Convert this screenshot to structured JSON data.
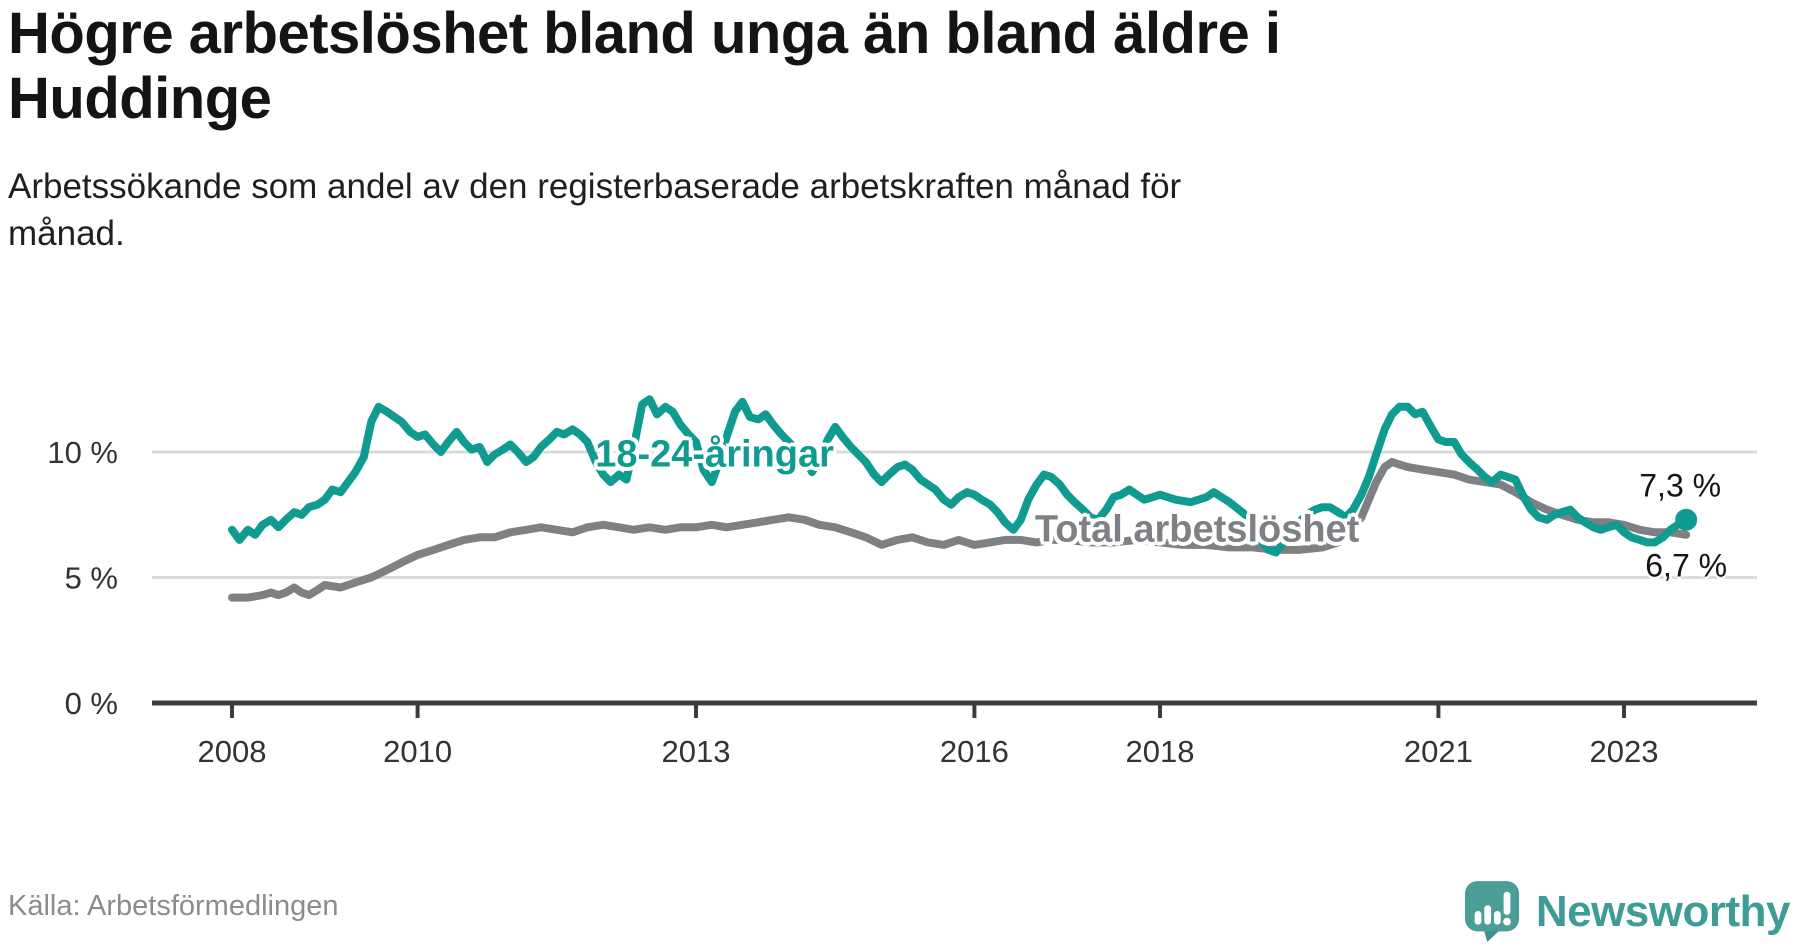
{
  "title": "Högre arbetslöshet bland unga än bland äldre i\nHuddinge",
  "subtitle": "Arbetssökande som andel av den registerbaserade arbetskraften månad för\nmånad.",
  "source": "Källa: Arbetsförmedlingen",
  "brand": {
    "name": "Newsworthy",
    "bubble_color": "#4a9e97",
    "tail_color": "#3f928b",
    "text_color": "#3e9c95"
  },
  "colors": {
    "background": "#ffffff",
    "axis": "#3c3c3c",
    "gridline": "#dbdbdb",
    "tick_label": "#333333",
    "young_series": "#0f9b90",
    "total_series": "#7f8084"
  },
  "chart_data": {
    "type": "line",
    "title": "Högre arbetslöshet bland unga än bland äldre i Huddinge",
    "xlabel": "",
    "ylabel": "Arbetssökande som andel av den registerbaserade arbetskraften (%)",
    "x_axis": {
      "ticks": [
        2008,
        2010,
        2013,
        2016,
        2018,
        2021,
        2023
      ],
      "range": [
        2007.1,
        2024.4
      ]
    },
    "y_axis": {
      "ticks": [
        0,
        5,
        10
      ],
      "tick_suffix": " %",
      "range": [
        0,
        13.2
      ],
      "grid": true
    },
    "legend_position": "inline-labels",
    "series": [
      {
        "name": "18-24-åringar",
        "color": "#0f9b90",
        "end_label": "7,3 %",
        "end_value": 7.3,
        "end_dot": true,
        "label_pos": {
          "x": 2013.2,
          "y": 9.9
        },
        "points": [
          [
            2008.0,
            6.9
          ],
          [
            2008.08,
            6.5
          ],
          [
            2008.17,
            6.9
          ],
          [
            2008.25,
            6.7
          ],
          [
            2008.33,
            7.1
          ],
          [
            2008.42,
            7.3
          ],
          [
            2008.5,
            7.0
          ],
          [
            2008.58,
            7.3
          ],
          [
            2008.67,
            7.6
          ],
          [
            2008.75,
            7.5
          ],
          [
            2008.83,
            7.8
          ],
          [
            2008.92,
            7.9
          ],
          [
            2009.0,
            8.1
          ],
          [
            2009.08,
            8.5
          ],
          [
            2009.17,
            8.4
          ],
          [
            2009.25,
            8.8
          ],
          [
            2009.33,
            9.2
          ],
          [
            2009.42,
            9.8
          ],
          [
            2009.5,
            11.2
          ],
          [
            2009.58,
            11.8
          ],
          [
            2009.67,
            11.6
          ],
          [
            2009.75,
            11.4
          ],
          [
            2009.83,
            11.2
          ],
          [
            2009.92,
            10.8
          ],
          [
            2010.0,
            10.6
          ],
          [
            2010.08,
            10.7
          ],
          [
            2010.17,
            10.3
          ],
          [
            2010.25,
            10.0
          ],
          [
            2010.33,
            10.4
          ],
          [
            2010.42,
            10.8
          ],
          [
            2010.5,
            10.4
          ],
          [
            2010.58,
            10.1
          ],
          [
            2010.67,
            10.2
          ],
          [
            2010.75,
            9.6
          ],
          [
            2010.83,
            9.9
          ],
          [
            2010.92,
            10.1
          ],
          [
            2011.0,
            10.3
          ],
          [
            2011.08,
            10.0
          ],
          [
            2011.17,
            9.6
          ],
          [
            2011.25,
            9.8
          ],
          [
            2011.33,
            10.2
          ],
          [
            2011.42,
            10.5
          ],
          [
            2011.5,
            10.8
          ],
          [
            2011.58,
            10.7
          ],
          [
            2011.67,
            10.9
          ],
          [
            2011.75,
            10.7
          ],
          [
            2011.83,
            10.4
          ],
          [
            2011.92,
            9.6
          ],
          [
            2012.0,
            9.1
          ],
          [
            2012.08,
            8.8
          ],
          [
            2012.17,
            9.1
          ],
          [
            2012.25,
            8.9
          ],
          [
            2012.33,
            10.2
          ],
          [
            2012.42,
            11.9
          ],
          [
            2012.5,
            12.1
          ],
          [
            2012.58,
            11.5
          ],
          [
            2012.67,
            11.8
          ],
          [
            2012.75,
            11.6
          ],
          [
            2012.83,
            11.1
          ],
          [
            2012.92,
            10.7
          ],
          [
            2013.0,
            10.4
          ],
          [
            2013.08,
            9.3
          ],
          [
            2013.17,
            8.8
          ],
          [
            2013.25,
            9.6
          ],
          [
            2013.33,
            10.6
          ],
          [
            2013.42,
            11.6
          ],
          [
            2013.5,
            12.0
          ],
          [
            2013.58,
            11.4
          ],
          [
            2013.67,
            11.3
          ],
          [
            2013.75,
            11.5
          ],
          [
            2013.83,
            11.1
          ],
          [
            2013.92,
            10.7
          ],
          [
            2014.0,
            10.4
          ],
          [
            2014.08,
            10.1
          ],
          [
            2014.17,
            9.8
          ],
          [
            2014.25,
            9.2
          ],
          [
            2014.33,
            9.7
          ],
          [
            2014.42,
            10.5
          ],
          [
            2014.5,
            11.0
          ],
          [
            2014.58,
            10.6
          ],
          [
            2014.67,
            10.2
          ],
          [
            2014.75,
            9.9
          ],
          [
            2014.83,
            9.6
          ],
          [
            2014.92,
            9.1
          ],
          [
            2015.0,
            8.8
          ],
          [
            2015.08,
            9.1
          ],
          [
            2015.17,
            9.4
          ],
          [
            2015.25,
            9.5
          ],
          [
            2015.33,
            9.3
          ],
          [
            2015.42,
            8.9
          ],
          [
            2015.5,
            8.7
          ],
          [
            2015.58,
            8.5
          ],
          [
            2015.67,
            8.1
          ],
          [
            2015.75,
            7.9
          ],
          [
            2015.83,
            8.2
          ],
          [
            2015.92,
            8.4
          ],
          [
            2016.0,
            8.3
          ],
          [
            2016.08,
            8.1
          ],
          [
            2016.17,
            7.9
          ],
          [
            2016.25,
            7.6
          ],
          [
            2016.33,
            7.2
          ],
          [
            2016.42,
            6.9
          ],
          [
            2016.5,
            7.3
          ],
          [
            2016.58,
            8.1
          ],
          [
            2016.67,
            8.7
          ],
          [
            2016.75,
            9.1
          ],
          [
            2016.83,
            9.0
          ],
          [
            2016.92,
            8.7
          ],
          [
            2017.0,
            8.3
          ],
          [
            2017.08,
            8.0
          ],
          [
            2017.17,
            7.7
          ],
          [
            2017.25,
            7.4
          ],
          [
            2017.33,
            7.3
          ],
          [
            2017.42,
            7.7
          ],
          [
            2017.5,
            8.2
          ],
          [
            2017.58,
            8.3
          ],
          [
            2017.67,
            8.5
          ],
          [
            2017.75,
            8.3
          ],
          [
            2017.83,
            8.1
          ],
          [
            2017.92,
            8.2
          ],
          [
            2018.0,
            8.3
          ],
          [
            2018.17,
            8.1
          ],
          [
            2018.33,
            8.0
          ],
          [
            2018.5,
            8.2
          ],
          [
            2018.58,
            8.4
          ],
          [
            2018.75,
            8.0
          ],
          [
            2018.92,
            7.5
          ],
          [
            2019.0,
            7.0
          ],
          [
            2019.08,
            6.5
          ],
          [
            2019.17,
            6.1
          ],
          [
            2019.25,
            6.0
          ],
          [
            2019.33,
            6.4
          ],
          [
            2019.42,
            6.9
          ],
          [
            2019.5,
            7.2
          ],
          [
            2019.58,
            7.5
          ],
          [
            2019.67,
            7.7
          ],
          [
            2019.75,
            7.8
          ],
          [
            2019.83,
            7.8
          ],
          [
            2019.92,
            7.6
          ],
          [
            2020.0,
            7.4
          ],
          [
            2020.08,
            7.7
          ],
          [
            2020.17,
            8.3
          ],
          [
            2020.25,
            9.0
          ],
          [
            2020.33,
            9.9
          ],
          [
            2020.42,
            10.9
          ],
          [
            2020.5,
            11.5
          ],
          [
            2020.58,
            11.8
          ],
          [
            2020.67,
            11.8
          ],
          [
            2020.75,
            11.5
          ],
          [
            2020.83,
            11.6
          ],
          [
            2020.92,
            11.0
          ],
          [
            2021.0,
            10.5
          ],
          [
            2021.08,
            10.4
          ],
          [
            2021.17,
            10.4
          ],
          [
            2021.25,
            9.9
          ],
          [
            2021.33,
            9.6
          ],
          [
            2021.42,
            9.3
          ],
          [
            2021.5,
            9.0
          ],
          [
            2021.58,
            8.8
          ],
          [
            2021.67,
            9.1
          ],
          [
            2021.75,
            9.0
          ],
          [
            2021.83,
            8.9
          ],
          [
            2021.92,
            8.2
          ],
          [
            2022.0,
            7.7
          ],
          [
            2022.08,
            7.4
          ],
          [
            2022.17,
            7.3
          ],
          [
            2022.25,
            7.5
          ],
          [
            2022.33,
            7.6
          ],
          [
            2022.42,
            7.7
          ],
          [
            2022.5,
            7.4
          ],
          [
            2022.58,
            7.2
          ],
          [
            2022.67,
            7.0
          ],
          [
            2022.75,
            6.9
          ],
          [
            2022.83,
            7.0
          ],
          [
            2022.92,
            7.1
          ],
          [
            2023.0,
            6.8
          ],
          [
            2023.08,
            6.6
          ],
          [
            2023.17,
            6.5
          ],
          [
            2023.25,
            6.4
          ],
          [
            2023.33,
            6.4
          ],
          [
            2023.42,
            6.6
          ],
          [
            2023.5,
            6.9
          ],
          [
            2023.58,
            7.1
          ],
          [
            2023.67,
            7.3
          ]
        ]
      },
      {
        "name": "Total arbetslöshet",
        "color": "#7f8084",
        "end_label": "6,7 %",
        "end_value": 6.7,
        "end_dot": false,
        "label_pos": {
          "x": 2018.4,
          "y": 6.9
        },
        "points": [
          [
            2008.0,
            4.2
          ],
          [
            2008.17,
            4.2
          ],
          [
            2008.33,
            4.3
          ],
          [
            2008.42,
            4.4
          ],
          [
            2008.5,
            4.3
          ],
          [
            2008.58,
            4.4
          ],
          [
            2008.67,
            4.6
          ],
          [
            2008.75,
            4.4
          ],
          [
            2008.83,
            4.3
          ],
          [
            2008.92,
            4.5
          ],
          [
            2009.0,
            4.7
          ],
          [
            2009.17,
            4.6
          ],
          [
            2009.33,
            4.8
          ],
          [
            2009.5,
            5.0
          ],
          [
            2009.67,
            5.3
          ],
          [
            2009.83,
            5.6
          ],
          [
            2010.0,
            5.9
          ],
          [
            2010.17,
            6.1
          ],
          [
            2010.33,
            6.3
          ],
          [
            2010.5,
            6.5
          ],
          [
            2010.67,
            6.6
          ],
          [
            2010.83,
            6.6
          ],
          [
            2011.0,
            6.8
          ],
          [
            2011.17,
            6.9
          ],
          [
            2011.33,
            7.0
          ],
          [
            2011.5,
            6.9
          ],
          [
            2011.67,
            6.8
          ],
          [
            2011.83,
            7.0
          ],
          [
            2012.0,
            7.1
          ],
          [
            2012.17,
            7.0
          ],
          [
            2012.33,
            6.9
          ],
          [
            2012.5,
            7.0
          ],
          [
            2012.67,
            6.9
          ],
          [
            2012.83,
            7.0
          ],
          [
            2013.0,
            7.0
          ],
          [
            2013.17,
            7.1
          ],
          [
            2013.33,
            7.0
          ],
          [
            2013.5,
            7.1
          ],
          [
            2013.67,
            7.2
          ],
          [
            2013.83,
            7.3
          ],
          [
            2014.0,
            7.4
          ],
          [
            2014.17,
            7.3
          ],
          [
            2014.33,
            7.1
          ],
          [
            2014.5,
            7.0
          ],
          [
            2014.67,
            6.8
          ],
          [
            2014.83,
            6.6
          ],
          [
            2015.0,
            6.3
          ],
          [
            2015.17,
            6.5
          ],
          [
            2015.33,
            6.6
          ],
          [
            2015.5,
            6.4
          ],
          [
            2015.67,
            6.3
          ],
          [
            2015.83,
            6.5
          ],
          [
            2016.0,
            6.3
          ],
          [
            2016.17,
            6.4
          ],
          [
            2016.33,
            6.5
          ],
          [
            2016.5,
            6.5
          ],
          [
            2016.67,
            6.4
          ],
          [
            2016.83,
            6.5
          ],
          [
            2017.0,
            6.5
          ],
          [
            2017.25,
            6.4
          ],
          [
            2017.5,
            6.4
          ],
          [
            2017.75,
            6.5
          ],
          [
            2018.0,
            6.4
          ],
          [
            2018.25,
            6.3
          ],
          [
            2018.5,
            6.3
          ],
          [
            2018.75,
            6.2
          ],
          [
            2019.0,
            6.2
          ],
          [
            2019.25,
            6.1
          ],
          [
            2019.5,
            6.1
          ],
          [
            2019.75,
            6.2
          ],
          [
            2019.92,
            6.4
          ],
          [
            2020.08,
            6.9
          ],
          [
            2020.17,
            7.4
          ],
          [
            2020.25,
            8.1
          ],
          [
            2020.33,
            8.8
          ],
          [
            2020.42,
            9.4
          ],
          [
            2020.5,
            9.6
          ],
          [
            2020.58,
            9.5
          ],
          [
            2020.67,
            9.4
          ],
          [
            2020.83,
            9.3
          ],
          [
            2021.0,
            9.2
          ],
          [
            2021.17,
            9.1
          ],
          [
            2021.33,
            8.9
          ],
          [
            2021.5,
            8.8
          ],
          [
            2021.67,
            8.7
          ],
          [
            2021.83,
            8.4
          ],
          [
            2022.0,
            8.0
          ],
          [
            2022.17,
            7.7
          ],
          [
            2022.33,
            7.5
          ],
          [
            2022.5,
            7.3
          ],
          [
            2022.67,
            7.2
          ],
          [
            2022.83,
            7.2
          ],
          [
            2023.0,
            7.1
          ],
          [
            2023.17,
            6.9
          ],
          [
            2023.33,
            6.8
          ],
          [
            2023.5,
            6.8
          ],
          [
            2023.67,
            6.7
          ]
        ]
      }
    ]
  }
}
